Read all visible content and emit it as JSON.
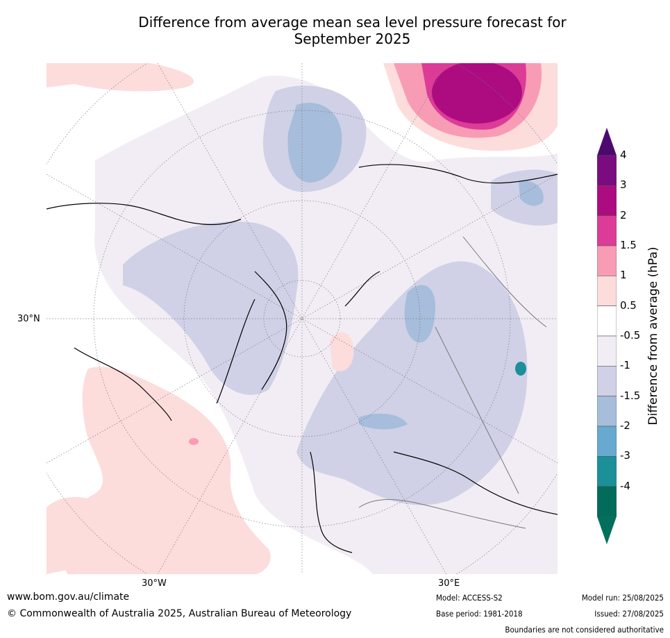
{
  "title_line1": "Difference from average mean sea level pressure forecast for",
  "title_line2": "September 2025",
  "map": {
    "label_lat": "30°N",
    "label_lon_w": "30°W",
    "label_lon_e": "30°E"
  },
  "colorbar": {
    "label": "Difference from average (hPa)",
    "ticks": [
      "4",
      "3",
      "2",
      "1.5",
      "1",
      "0.5",
      "-0.5",
      "-1",
      "-1.5",
      "-2",
      "-3",
      "-4"
    ],
    "colors": [
      "#7b0c7f",
      "#ad0c80",
      "#dc3c97",
      "#f89cb6",
      "#fddcdc",
      "#ffffff",
      "#f2edf4",
      "#d0d1e6",
      "#a6bddb",
      "#67a9cf",
      "#1c9099",
      "#016c59"
    ],
    "over_color": "#4d0a6e",
    "under_color": "#00705c"
  },
  "footer": {
    "url": "www.bom.gov.au/climate",
    "copyright": "© Commonwealth of Australia 2025, Australian Bureau of Meteorology",
    "model": "Model: ACCESS-S2",
    "base_period": "Base period: 1981-2018",
    "model_run": "Model run: 25/08/2025",
    "issued": "Issued: 27/08/2025",
    "disclaimer": "Boundaries are not considered authoritative"
  }
}
